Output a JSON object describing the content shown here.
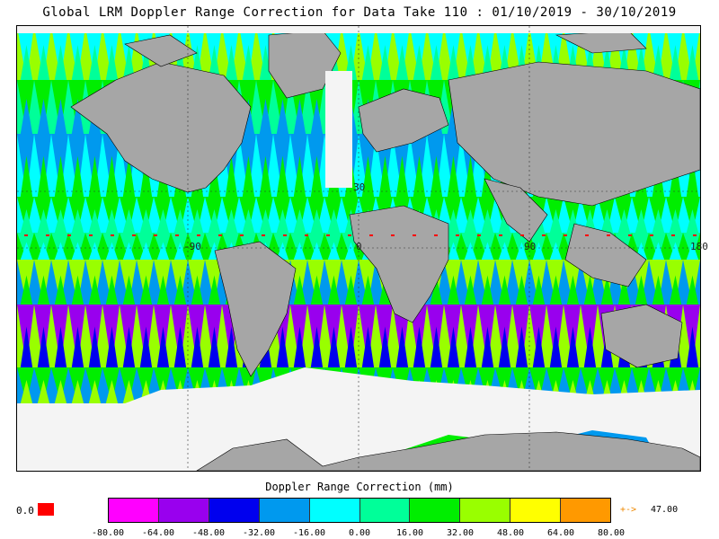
{
  "title": "Global LRM Doppler Range Correction for Data Take 110 : 01/10/2019 - 30/10/2019",
  "map": {
    "grid_labels": [
      "30",
      "-90",
      "0",
      "90",
      "180"
    ],
    "land_color": "#a6a6a6",
    "nodata_color": "#f4f4f4"
  },
  "legend": {
    "title": "Doppler Range Correction (mm)",
    "ticks": [
      "-80.00",
      "-64.00",
      "-48.00",
      "-32.00",
      "-16.00",
      "0.00",
      "16.00",
      "32.00",
      "48.00",
      "64.00",
      "80.00"
    ],
    "colors": [
      "#ff00ff",
      "#9900ee",
      "#0000ee",
      "#0099ee",
      "#00ffff",
      "#00ff99",
      "#00ee00",
      "#99ff00",
      "#ffff00",
      "#ff9900"
    ],
    "nodata_label": "0.0",
    "nodata_color": "#ff0000",
    "overflow_label": "+->",
    "overflow_value": "47.00"
  }
}
